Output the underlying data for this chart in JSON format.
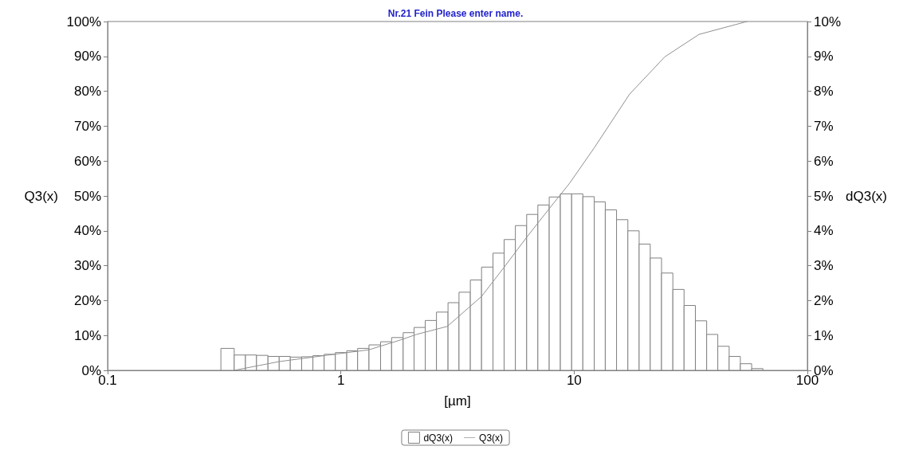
{
  "chart_data": {
    "type": "histogram",
    "title": "Nr.21 Fein Please enter name.",
    "xlabel": "[µm]",
    "ylabel": "Q3(x)",
    "y2label": "dQ3(x)",
    "log": "x",
    "grid": false,
    "legend": "bottom",
    "marker": "none",
    "line_style": "solid",
    "xlim": [
      0.1,
      100
    ],
    "xticks": [
      0.1,
      1,
      10,
      100
    ],
    "ylim": [
      0,
      100
    ],
    "yticks": [
      {
        "value": 0,
        "label": "0%"
      },
      {
        "value": 10,
        "label": "10%"
      },
      {
        "value": 20,
        "label": "20%"
      },
      {
        "value": 30,
        "label": "30%"
      },
      {
        "value": 40,
        "label": "40%"
      },
      {
        "value": 50,
        "label": "50%"
      },
      {
        "value": 60,
        "label": "60%"
      },
      {
        "value": 70,
        "label": "70%"
      },
      {
        "value": 80,
        "label": "80%"
      },
      {
        "value": 90,
        "label": "90%"
      },
      {
        "value": 100,
        "label": "100%"
      }
    ],
    "y2lim": [
      0,
      10
    ],
    "y2ticks": [
      {
        "value": 0,
        "label": "0%"
      },
      {
        "value": 1,
        "label": "1%"
      },
      {
        "value": 2,
        "label": "2%"
      },
      {
        "value": 3,
        "label": "3%"
      },
      {
        "value": 4,
        "label": "4%"
      },
      {
        "value": 5,
        "label": "5%"
      },
      {
        "value": 6,
        "label": "6%"
      },
      {
        "value": 7,
        "label": "7%"
      },
      {
        "value": 8,
        "label": "8%"
      },
      {
        "value": 9,
        "label": "9%"
      },
      {
        "value": 10,
        "label": "10%"
      }
    ],
    "series": [
      {
        "name": "dQ3(x)",
        "axis": "y2",
        "color": "#808080",
        "bins": [
          0.306,
          0.349,
          0.39,
          0.435,
          0.487,
          0.544,
          0.607,
          0.679,
          0.759,
          0.848,
          0.947,
          1.06,
          1.18,
          1.32,
          1.48,
          1.65,
          1.85,
          2.06,
          2.3,
          2.57,
          2.88,
          3.21,
          3.59,
          4.01,
          4.49,
          5.01,
          5.6,
          6.26,
          6.99,
          7.82,
          8.73,
          9.76,
          10.9,
          12.2,
          13.6,
          15.2,
          17.0,
          19.0,
          21.2,
          23.7,
          26.5,
          29.6,
          33.1,
          37.0,
          41.3,
          46.2,
          51.6,
          57.7,
          64.5
        ],
        "values": [
          0.63,
          0.44,
          0.44,
          0.43,
          0.4,
          0.4,
          0.38,
          0.39,
          0.42,
          0.46,
          0.51,
          0.56,
          0.63,
          0.73,
          0.82,
          0.94,
          1.08,
          1.23,
          1.43,
          1.67,
          1.94,
          2.24,
          2.59,
          2.96,
          3.36,
          3.75,
          4.15,
          4.47,
          4.74,
          4.97,
          5.06,
          5.06,
          4.98,
          4.83,
          4.6,
          4.32,
          4.0,
          3.62,
          3.22,
          2.79,
          2.32,
          1.86,
          1.42,
          1.03,
          0.69,
          0.4,
          0.19,
          0.05
        ]
      },
      {
        "name": "Q3(x)",
        "type": "line",
        "axis": "y",
        "color": "#909090",
        "x": [
          0.349,
          0.542,
          0.841,
          1.32,
          1.8,
          2.11,
          2.86,
          4.01,
          4.99,
          6.22,
          7.81,
          9.58,
          12.2,
          17.3,
          24.5,
          34.3,
          55.1
        ],
        "values": [
          0,
          2.5,
          4.2,
          5.9,
          8.7,
          10.3,
          12.6,
          21.2,
          29.4,
          37.9,
          46.3,
          53.7,
          63.8,
          79.2,
          89.9,
          96.3,
          100
        ]
      }
    ]
  }
}
